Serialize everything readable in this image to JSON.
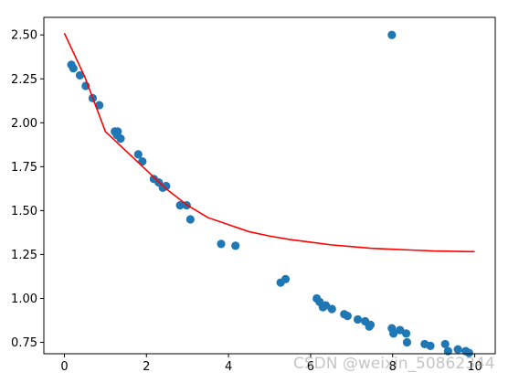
{
  "chart_data": {
    "type": "scatter",
    "title": "",
    "xlabel": "",
    "ylabel": "",
    "xlim": [
      -0.5,
      10.5
    ],
    "ylim": [
      0.685,
      2.6
    ],
    "xticks": [
      0,
      2,
      4,
      6,
      8,
      10
    ],
    "yticks": [
      0.75,
      1.0,
      1.25,
      1.5,
      1.75,
      2.0,
      2.25,
      2.5
    ],
    "xtick_labels": [
      "0",
      "2",
      "4",
      "6",
      "8",
      "10"
    ],
    "ytick_labels": [
      "0.75",
      "1.00",
      "1.25",
      "1.50",
      "1.75",
      "2.00",
      "2.25",
      "2.50"
    ],
    "grid": false,
    "legend": "none",
    "series": [
      {
        "kind": "scatter",
        "color": "#1f77b4",
        "points": [
          [
            0.17,
            2.33
          ],
          [
            0.22,
            2.31
          ],
          [
            0.38,
            2.27
          ],
          [
            0.52,
            2.21
          ],
          [
            0.69,
            2.14
          ],
          [
            0.85,
            2.1
          ],
          [
            1.23,
            1.95
          ],
          [
            1.3,
            1.95
          ],
          [
            1.28,
            1.93
          ],
          [
            1.37,
            1.91
          ],
          [
            1.8,
            1.82
          ],
          [
            1.9,
            1.78
          ],
          [
            2.18,
            1.68
          ],
          [
            2.3,
            1.66
          ],
          [
            2.4,
            1.63
          ],
          [
            2.48,
            1.64
          ],
          [
            2.82,
            1.53
          ],
          [
            2.98,
            1.53
          ],
          [
            3.07,
            1.45
          ],
          [
            3.82,
            1.31
          ],
          [
            4.17,
            1.3
          ],
          [
            5.27,
            1.09
          ],
          [
            5.39,
            1.11
          ],
          [
            6.15,
            1.0
          ],
          [
            6.22,
            0.98
          ],
          [
            6.3,
            0.95
          ],
          [
            6.37,
            0.96
          ],
          [
            6.52,
            0.94
          ],
          [
            6.82,
            0.91
          ],
          [
            6.9,
            0.9
          ],
          [
            7.15,
            0.88
          ],
          [
            7.33,
            0.87
          ],
          [
            7.43,
            0.84
          ],
          [
            7.46,
            0.85
          ],
          [
            7.98,
            2.5
          ],
          [
            7.98,
            0.83
          ],
          [
            8.02,
            0.8
          ],
          [
            8.18,
            0.82
          ],
          [
            8.33,
            0.8
          ],
          [
            8.35,
            0.75
          ],
          [
            8.78,
            0.74
          ],
          [
            8.92,
            0.73
          ],
          [
            9.28,
            0.74
          ],
          [
            9.35,
            0.7
          ],
          [
            9.59,
            0.71
          ],
          [
            9.78,
            0.7
          ],
          [
            9.86,
            0.69
          ]
        ]
      },
      {
        "kind": "line",
        "color": "#ff0000",
        "points": [
          [
            0.0,
            2.51
          ],
          [
            0.5,
            2.26
          ],
          [
            1.0,
            1.95
          ],
          [
            1.5,
            1.84
          ],
          [
            2.0,
            1.73
          ],
          [
            2.5,
            1.62
          ],
          [
            3.0,
            1.53
          ],
          [
            3.5,
            1.46
          ],
          [
            4.0,
            1.42
          ],
          [
            4.5,
            1.38
          ],
          [
            5.0,
            1.355
          ],
          [
            5.5,
            1.335
          ],
          [
            6.0,
            1.32
          ],
          [
            6.5,
            1.305
          ],
          [
            7.0,
            1.295
          ],
          [
            7.5,
            1.285
          ],
          [
            8.0,
            1.28
          ],
          [
            8.5,
            1.275
          ],
          [
            9.0,
            1.27
          ],
          [
            9.5,
            1.268
          ],
          [
            10.0,
            1.266
          ]
        ]
      }
    ]
  },
  "watermark": "CSDN @weixin_50862344"
}
